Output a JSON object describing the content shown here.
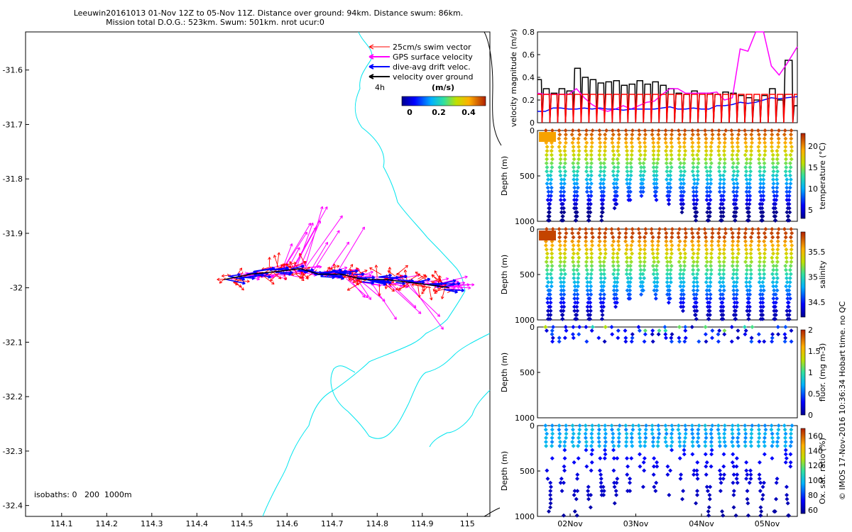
{
  "title_line1": "Leeuwin20161013 01-Nov 12Z to 05-Nov 11Z. Distance over ground: 94km. Distance swum: 86km.",
  "title_line2": "Mission total D.O.G.: 523km. Swum: 501km. nrot ucur:0",
  "colors": {
    "swim": "#ff0000",
    "gps": "#ff00ff",
    "drift": "#0000ff",
    "ground": "#000000",
    "isobath": "#00e5ee"
  },
  "footer_text": "© IMOS 17-Nov-2016 10:36:34 Hobart time. no QC",
  "chart_data": [
    {
      "type": "scatter",
      "name": "map",
      "x_ticks": [
        "114.1",
        "114.2",
        "114.3",
        "114.4",
        "114.5",
        "114.6",
        "114.7",
        "114.8",
        "114.9",
        "115"
      ],
      "y_ticks": [
        "-31.6",
        "-31.7",
        "-31.8",
        "-31.9",
        "-32",
        "-32.1",
        "-32.2",
        "-32.3",
        "-32.4"
      ],
      "xlim": [
        114.02,
        115.05
      ],
      "ylim": [
        -32.42,
        -31.53
      ],
      "legend": {
        "position": "top-right",
        "entries": [
          {
            "label": "25cm/s swim vector",
            "color": "#ff0000"
          },
          {
            "label": "GPS surface velocity",
            "color": "#ff00ff"
          },
          {
            "label": "dive-avg drift veloc.",
            "color": "#0000ff"
          },
          {
            "label": "velocity over ground",
            "color": "#000000"
          }
        ]
      },
      "time_label": "4h",
      "colorbar_label": "(m/s)",
      "colorbar_ticks": [
        "0",
        "0.2",
        "0.4"
      ],
      "isobath_label": "isobaths: 0   200  1000m",
      "track": [
        [
          114.46,
          -31.985
        ],
        [
          114.52,
          -31.975
        ],
        [
          114.58,
          -31.97
        ],
        [
          114.63,
          -31.965
        ],
        [
          114.67,
          -31.975
        ],
        [
          114.72,
          -31.975
        ],
        [
          114.77,
          -31.985
        ],
        [
          114.82,
          -31.985
        ],
        [
          114.87,
          -31.99
        ],
        [
          114.92,
          -31.995
        ],
        [
          114.96,
          -32.0
        ]
      ]
    },
    {
      "type": "line",
      "name": "velocity",
      "ylabel": "velocity magnitude (m/s)",
      "ylim": [
        0,
        0.8
      ],
      "y_ticks": [
        "0",
        "0.2",
        "0.4",
        "0.6",
        "0.8"
      ],
      "x": [
        0,
        0.03,
        0.06,
        0.09,
        0.12,
        0.15,
        0.18,
        0.21,
        0.24,
        0.27,
        0.3,
        0.33,
        0.36,
        0.39,
        0.42,
        0.45,
        0.48,
        0.51,
        0.54,
        0.57,
        0.6,
        0.63,
        0.66,
        0.69,
        0.72,
        0.75,
        0.78,
        0.81,
        0.84,
        0.87,
        0.9,
        0.93,
        0.96,
        1.0
      ],
      "series": [
        {
          "color": "#000000",
          "values": [
            0.38,
            0.3,
            0.26,
            0.3,
            0.28,
            0.48,
            0.4,
            0.38,
            0.35,
            0.36,
            0.37,
            0.33,
            0.34,
            0.37,
            0.34,
            0.36,
            0.33,
            0.3,
            0.26,
            0.25,
            0.28,
            0.26,
            0.26,
            0.25,
            0.27,
            0.26,
            0.24,
            0.22,
            0.2,
            0.24,
            0.3,
            0.2,
            0.55,
            0.15
          ]
        },
        {
          "color": "#ff00ff",
          "values": [
            0.26,
            0.25,
            0.25,
            0.25,
            0.25,
            0.3,
            0.22,
            0.16,
            0.12,
            0.1,
            0.12,
            0.15,
            0.12,
            0.15,
            0.18,
            0.19,
            0.25,
            0.3,
            0.3,
            0.26,
            0.26,
            0.26,
            0.26,
            0.27,
            0.2,
            0.22,
            0.65,
            0.63,
            0.8,
            0.8,
            0.5,
            0.42,
            0.52,
            0.67
          ]
        },
        {
          "color": "#0000ff",
          "values": [
            0.1,
            0.1,
            0.13,
            0.13,
            0.12,
            0.12,
            0.13,
            0.12,
            0.13,
            0.12,
            0.12,
            0.11,
            0.12,
            0.12,
            0.12,
            0.12,
            0.13,
            0.14,
            0.12,
            0.12,
            0.13,
            0.12,
            0.12,
            0.15,
            0.15,
            0.16,
            0.18,
            0.17,
            0.18,
            0.2,
            0.22,
            0.21,
            0.22,
            0.23
          ]
        },
        {
          "color": "#ff0000",
          "values": [
            0.25,
            0.25,
            0.25,
            0.25,
            0.25,
            0.25,
            0.25,
            0.25,
            0.25,
            0.25,
            0.25,
            0.25,
            0.25,
            0.25,
            0.25,
            0.25,
            0.25,
            0.25,
            0.25,
            0.25,
            0.25,
            0.25,
            0.25,
            0.25,
            0.25,
            0.25,
            0.25,
            0.25,
            0.25,
            0.25,
            0.25,
            0.25,
            0.25,
            0.25
          ]
        }
      ]
    },
    {
      "type": "scatter",
      "name": "temperature",
      "ylabel": "Depth (m)",
      "colorbar_label": "temperature (°C)",
      "ylim": [
        1000,
        0
      ],
      "y_ticks": [
        "0",
        "500",
        "1000"
      ],
      "colorbar_ticks": [
        "5",
        "10",
        "15",
        "20"
      ],
      "clim": [
        3,
        23
      ]
    },
    {
      "type": "scatter",
      "name": "salinity",
      "ylabel": "Depth (m)",
      "colorbar_label": "salinity",
      "ylim": [
        1000,
        0
      ],
      "y_ticks": [
        "0",
        "500",
        "1000"
      ],
      "colorbar_ticks": [
        "34.5",
        "35",
        "35.5"
      ],
      "clim": [
        34.2,
        35.9
      ]
    },
    {
      "type": "scatter",
      "name": "fluorescence",
      "ylabel": "Depth (m)",
      "colorbar_label": "fluor. (mg m-3)",
      "ylim": [
        1000,
        0
      ],
      "y_ticks": [
        "0",
        "500",
        "1000"
      ],
      "colorbar_ticks": [
        "0",
        "0.5",
        "1",
        "1.5",
        "2"
      ],
      "clim": [
        0,
        2
      ]
    },
    {
      "type": "scatter",
      "name": "oxygen",
      "ylabel": "Depth (m)",
      "colorbar_label": "Ox. sat. ratio (%)",
      "ylim": [
        1000,
        0
      ],
      "y_ticks": [
        "0",
        "500",
        "1000"
      ],
      "colorbar_ticks": [
        "60",
        "80",
        "100",
        "120",
        "140",
        "160"
      ],
      "clim": [
        55,
        170
      ],
      "x_ticks": [
        "02Nov",
        "03Nov",
        "04Nov",
        "05Nov"
      ]
    }
  ]
}
